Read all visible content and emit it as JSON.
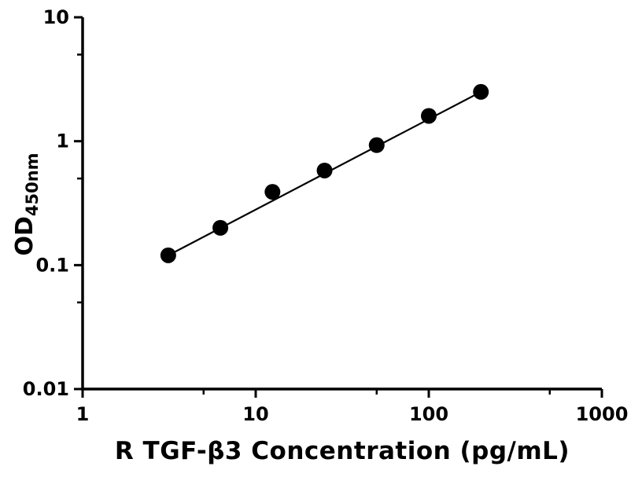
{
  "page": {
    "background_color": "#ffffff",
    "foreground_color": "#000000"
  },
  "chart_data": {
    "type": "scatter",
    "title": "",
    "xlabel": "R TGF-β3 Concentration (pg/mL)",
    "ylabel_main": "OD",
    "ylabel_sub": "450nm",
    "x_scale": "log",
    "y_scale": "log",
    "xlim": [
      1,
      1000
    ],
    "ylim": [
      0.01,
      10
    ],
    "x_major_ticks": [
      1,
      10,
      100,
      1000
    ],
    "x_major_tick_labels": [
      "1",
      "10",
      "100",
      "1000"
    ],
    "x_minor_ticks": [
      5,
      50,
      500
    ],
    "y_major_ticks": [
      0.01,
      0.1,
      1,
      10
    ],
    "y_major_tick_labels": [
      "0.01",
      "0.1",
      "1",
      "10"
    ],
    "y_minor_ticks": [
      0.05,
      0.5,
      5
    ],
    "grid": false,
    "legend": false,
    "marker_color": "#000000",
    "line_color": "#000000",
    "series": [
      {
        "name": "standard-curve",
        "marker": "filled-circle",
        "x": [
          3.125,
          6.25,
          12.5,
          25,
          50,
          100,
          200
        ],
        "y": [
          0.12,
          0.2,
          0.39,
          0.58,
          0.93,
          1.6,
          2.5
        ],
        "fit_line": "straight line in log-log space from first point to last point"
      }
    ]
  }
}
